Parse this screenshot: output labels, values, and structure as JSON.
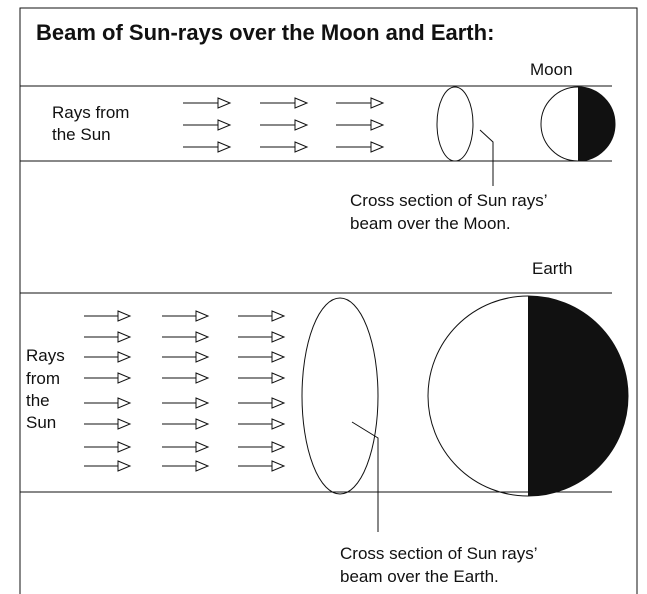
{
  "title": "Beam of Sun-rays over the Moon and Earth:",
  "moon_panel": {
    "body_label": "Moon",
    "rays_label": [
      "Rays from",
      "the Sun"
    ],
    "cross_section_label": [
      "Cross section of Sun rays’",
      "beam over the Moon."
    ]
  },
  "earth_panel": {
    "body_label": "Earth",
    "rays_label": [
      "Rays",
      "from",
      "the",
      "Sun"
    ],
    "cross_section_label": [
      "Cross section of Sun rays’",
      "beam over the Earth."
    ]
  }
}
